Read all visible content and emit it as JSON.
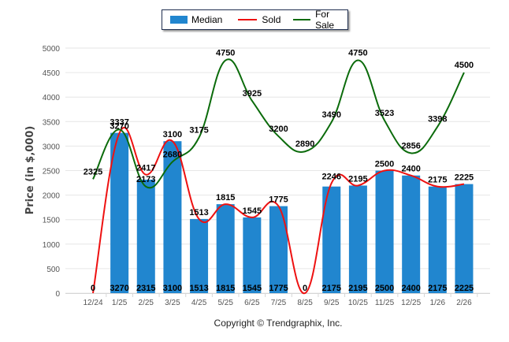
{
  "chart_data": {
    "type": "bar",
    "title": "",
    "xlabel": "",
    "ylabel": "Price (in $,000)",
    "ylim": [
      0,
      5000
    ],
    "yticks": [
      0,
      500,
      1000,
      1500,
      2000,
      2500,
      3000,
      3500,
      4000,
      4500,
      5000
    ],
    "grid": true,
    "legend_placement": "top-center",
    "categories": [
      "12/24",
      "1/25",
      "2/25",
      "3/25",
      "4/25",
      "5/25",
      "6/25",
      "7/25",
      "8/25",
      "9/25",
      "10/25",
      "11/25",
      "12/25",
      "1/26",
      "2/26"
    ],
    "series": [
      {
        "name": "Median",
        "type": "bar",
        "color": "#2186cf",
        "values": [
          0,
          3270,
          2315,
          3100,
          1513,
          1815,
          1545,
          1775,
          0,
          2175,
          2195,
          2500,
          2400,
          2175,
          2225
        ]
      },
      {
        "name": "Sold",
        "type": "line",
        "color": "#ee1111",
        "values": [
          0,
          3270,
          2417,
          3100,
          1513,
          1815,
          1545,
          1775,
          0,
          2246,
          2195,
          2500,
          2400,
          2175,
          2225
        ]
      },
      {
        "name": "For Sale",
        "type": "line",
        "color": "#0b6b0b",
        "values": [
          2325,
          3337,
          2173,
          2680,
          3175,
          4750,
          3925,
          3200,
          2890,
          3490,
          4750,
          3523,
          2856,
          3398,
          4500
        ]
      }
    ]
  },
  "legend": {
    "median": "Median",
    "sold": "Sold",
    "for_sale": "For Sale"
  },
  "footer": {
    "copyright": "Copyright © Trendgraphix, Inc."
  }
}
